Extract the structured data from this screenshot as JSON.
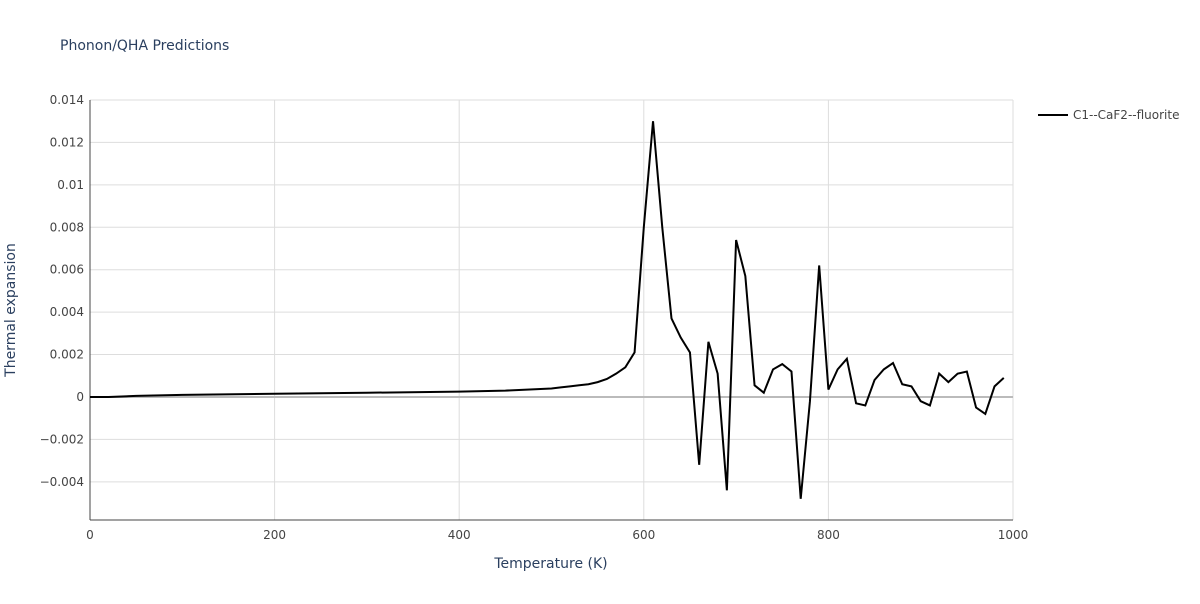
{
  "chart_data": {
    "type": "line",
    "title": "Phonon/QHA Predictions",
    "x_label": "Temperature (K)",
    "y_label": "Thermal expansion",
    "x": [
      0,
      20,
      50,
      100,
      200,
      300,
      400,
      450,
      500,
      510,
      520,
      530,
      540,
      550,
      560,
      570,
      580,
      590,
      600,
      610,
      620,
      630,
      640,
      650,
      660,
      670,
      680,
      690,
      700,
      710,
      720,
      730,
      740,
      750,
      760,
      770,
      780,
      790,
      800,
      810,
      820,
      830,
      840,
      850,
      860,
      870,
      880,
      890,
      900,
      910,
      920,
      930,
      940,
      950,
      960,
      970,
      980,
      990
    ],
    "series": [
      {
        "name": "C1--CaF2--fluorite",
        "color": "#000000",
        "values": [
          0,
          0,
          5e-05,
          0.0001,
          0.00015,
          0.0002,
          0.00025,
          0.0003,
          0.0004,
          0.00045,
          0.0005,
          0.00055,
          0.0006,
          0.0007,
          0.00085,
          0.0011,
          0.0014,
          0.0021,
          0.008,
          0.013,
          0.008,
          0.0037,
          0.0028,
          0.0021,
          -0.0032,
          0.0026,
          0.0011,
          -0.0044,
          0.0074,
          0.0057,
          0.00055,
          0.0002,
          0.0013,
          0.00155,
          0.0012,
          -0.0048,
          -0.0002,
          0.0062,
          0.00035,
          0.0013,
          0.0018,
          -0.0003,
          -0.0004,
          0.0008,
          0.0013,
          0.0016,
          0.0006,
          0.0005,
          -0.0002,
          -0.0004,
          0.0011,
          0.0007,
          0.0011,
          0.0012,
          -0.0005,
          -0.0008,
          0.0005,
          0.0009
        ]
      }
    ],
    "xlim": [
      0,
      1000
    ],
    "xticks": [
      0,
      200,
      400,
      600,
      800,
      1000
    ],
    "ylim": [
      -0.0058,
      0.014
    ],
    "yticks": [
      {
        "value": -0.004,
        "label": "−0.004"
      },
      {
        "value": -0.002,
        "label": "−0.002"
      },
      0,
      0.002,
      0.004,
      0.006,
      0.008,
      0.01,
      0.012,
      0.014
    ],
    "grid": true,
    "legend": "right"
  }
}
